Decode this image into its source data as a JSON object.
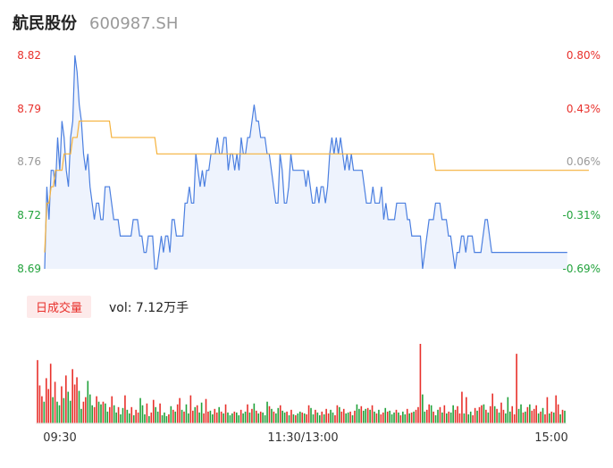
{
  "header": {
    "name": "航民股份",
    "code": "600987.SH"
  },
  "volume_panel": {
    "tab_label": "日成交量",
    "vol_label": "vol: 7.12万手"
  },
  "colors": {
    "up": "#e8302b",
    "down": "#21a23b",
    "price_line": "#4b7fe0",
    "avg_line": "#f5b13a",
    "price_fill": "#eef3fd",
    "up_axis": "#e8302b",
    "down_axis": "#21a23b",
    "flat_axis": "#999999"
  },
  "chart_data": [
    {
      "type": "line",
      "title": "",
      "y_ticks": [
        "8.82",
        "8.79",
        "8.76",
        "8.72",
        "8.69"
      ],
      "pct_ticks": [
        "0.80%",
        "0.43%",
        "0.06%",
        "-0.31%",
        "-0.69%"
      ],
      "tick_colors": [
        "up",
        "up",
        "flat",
        "down",
        "down"
      ],
      "ylim": [
        8.69,
        8.82
      ],
      "x_tick_labels": [
        "09:30",
        "11:30/13:00",
        "15:00"
      ],
      "x_tick_index": [
        0,
        120,
        240
      ],
      "series": [
        {
          "key": "price",
          "values": [
            8.69,
            8.74,
            8.72,
            8.75,
            8.75,
            8.74,
            8.77,
            8.75,
            8.78,
            8.77,
            8.75,
            8.74,
            8.77,
            8.78,
            8.82,
            8.81,
            8.79,
            8.78,
            8.76,
            8.75,
            8.76,
            8.74,
            8.73,
            8.72,
            8.73,
            8.73,
            8.72,
            8.72,
            8.74,
            8.74,
            8.74,
            8.73,
            8.72,
            8.72,
            8.72,
            8.71,
            8.71,
            8.71,
            8.71,
            8.71,
            8.71,
            8.72,
            8.72,
            8.72,
            8.71,
            8.71,
            8.7,
            8.7,
            8.71,
            8.71,
            8.71,
            8.69,
            8.69,
            8.7,
            8.71,
            8.7,
            8.71,
            8.71,
            8.7,
            8.72,
            8.72,
            8.71,
            8.71,
            8.71,
            8.71,
            8.73,
            8.73,
            8.74,
            8.73,
            8.73,
            8.76,
            8.75,
            8.74,
            8.75,
            8.74,
            8.75,
            8.75,
            8.76,
            8.76,
            8.76,
            8.77,
            8.76,
            8.76,
            8.77,
            8.77,
            8.75,
            8.76,
            8.76,
            8.75,
            8.76,
            8.75,
            8.77,
            8.76,
            8.76,
            8.77,
            8.77,
            8.78,
            8.79,
            8.78,
            8.78,
            8.77,
            8.77,
            8.77,
            8.76,
            8.76,
            8.75,
            8.74,
            8.73,
            8.73,
            8.76,
            8.75,
            8.73,
            8.73,
            8.74,
            8.76,
            8.75,
            8.75,
            8.75,
            8.75,
            8.75,
            8.75,
            8.74,
            8.75,
            8.74,
            8.73,
            8.73,
            8.74,
            8.73,
            8.74,
            8.74,
            8.73,
            8.74,
            8.76,
            8.77,
            8.76,
            8.77,
            8.76,
            8.77,
            8.76,
            8.75,
            8.76,
            8.75,
            8.76,
            8.75,
            8.75,
            8.75,
            8.75,
            8.75,
            8.74,
            8.73,
            8.73,
            8.73,
            8.74,
            8.73,
            8.73,
            8.73,
            8.74,
            8.72,
            8.73,
            8.72,
            8.72,
            8.72,
            8.72,
            8.73,
            8.73,
            8.73,
            8.73,
            8.73,
            8.72,
            8.72,
            8.71,
            8.71,
            8.71,
            8.71,
            8.71,
            8.69,
            8.7,
            8.71,
            8.72,
            8.72,
            8.72,
            8.73,
            8.73,
            8.73,
            8.72,
            8.72,
            8.72,
            8.71,
            8.71,
            8.7,
            8.69,
            8.7,
            8.7,
            8.71,
            8.71,
            8.7,
            8.71,
            8.71,
            8.71,
            8.7,
            8.7,
            8.7,
            8.7,
            8.71,
            8.72,
            8.72,
            8.71,
            8.7,
            8.7,
            8.7,
            8.7,
            8.7,
            8.7,
            8.7,
            8.7,
            8.7,
            8.7,
            8.7,
            8.7,
            8.7,
            8.7,
            8.7,
            8.7,
            8.7,
            8.7,
            8.7,
            8.7,
            8.7,
            8.7,
            8.7,
            8.7,
            8.7,
            8.7,
            8.7,
            8.7,
            8.7,
            8.7,
            8.7,
            8.7,
            8.7,
            8.7,
            8.7,
            8.7
          ]
        },
        {
          "key": "avg",
          "values": [
            8.7,
            8.73,
            8.73,
            8.74,
            8.74,
            8.75,
            8.75,
            8.75,
            8.75,
            8.76,
            8.76,
            8.76,
            8.76,
            8.77,
            8.77,
            8.77,
            8.78,
            8.78,
            8.78,
            8.78,
            8.78,
            8.78,
            8.78,
            8.78,
            8.78,
            8.78,
            8.78,
            8.78,
            8.78,
            8.78,
            8.78,
            8.77,
            8.77,
            8.77,
            8.77,
            8.77,
            8.77,
            8.77,
            8.77,
            8.77,
            8.77,
            8.77,
            8.77,
            8.77,
            8.77,
            8.77,
            8.77,
            8.77,
            8.77,
            8.77,
            8.77,
            8.77,
            8.76,
            8.76,
            8.76,
            8.76,
            8.76,
            8.76,
            8.76,
            8.76,
            8.76,
            8.76,
            8.76,
            8.76,
            8.76,
            8.76,
            8.76,
            8.76,
            8.76,
            8.76,
            8.76,
            8.76,
            8.76,
            8.76,
            8.76,
            8.76,
            8.76,
            8.76,
            8.76,
            8.76,
            8.76,
            8.76,
            8.76,
            8.76,
            8.76,
            8.76,
            8.76,
            8.76,
            8.76,
            8.76,
            8.76,
            8.76,
            8.76,
            8.76,
            8.76,
            8.76,
            8.76,
            8.76,
            8.76,
            8.76,
            8.76,
            8.76,
            8.76,
            8.76,
            8.76,
            8.76,
            8.76,
            8.76,
            8.76,
            8.76,
            8.76,
            8.76,
            8.76,
            8.76,
            8.76,
            8.76,
            8.76,
            8.76,
            8.76,
            8.76,
            8.76,
            8.76,
            8.76,
            8.76,
            8.76,
            8.76,
            8.76,
            8.76,
            8.76,
            8.76,
            8.76,
            8.76,
            8.76,
            8.76,
            8.76,
            8.76,
            8.76,
            8.76,
            8.76,
            8.76,
            8.76,
            8.76,
            8.76,
            8.76,
            8.76,
            8.76,
            8.76,
            8.76,
            8.76,
            8.76,
            8.76,
            8.76,
            8.76,
            8.76,
            8.76,
            8.76,
            8.76,
            8.76,
            8.76,
            8.76,
            8.76,
            8.76,
            8.76,
            8.76,
            8.76,
            8.76,
            8.76,
            8.76,
            8.76,
            8.76,
            8.76,
            8.76,
            8.76,
            8.76,
            8.76,
            8.76,
            8.76,
            8.76,
            8.76,
            8.76,
            8.76,
            8.75,
            8.75,
            8.75,
            8.75,
            8.75,
            8.75,
            8.75,
            8.75,
            8.75,
            8.75,
            8.75,
            8.75,
            8.75,
            8.75,
            8.75,
            8.75,
            8.75,
            8.75,
            8.75,
            8.75,
            8.75,
            8.75,
            8.75,
            8.75,
            8.75,
            8.75,
            8.75,
            8.75,
            8.75,
            8.75,
            8.75,
            8.75,
            8.75,
            8.75,
            8.75,
            8.75,
            8.75,
            8.75,
            8.75,
            8.75,
            8.75,
            8.75,
            8.75,
            8.75,
            8.75,
            8.75,
            8.75,
            8.75,
            8.75,
            8.75,
            8.75,
            8.75,
            8.75,
            8.75,
            8.75,
            8.75,
            8.75,
            8.75,
            8.75,
            8.75,
            8.75,
            8.75,
            8.75,
            8.75,
            8.75,
            8.75,
            8.75,
            8.75,
            8.75,
            8.75,
            8.75,
            8.75
          ]
        }
      ]
    },
    {
      "type": "bar",
      "title": "",
      "series": [
        {
          "key": "volume",
          "values": [
            700,
            420,
            300,
            240,
            500,
            380,
            660,
            290,
            460,
            240,
            200,
            410,
            280,
            530,
            350,
            250,
            600,
            430,
            510,
            360,
            160,
            240,
            290,
            470,
            320,
            200,
            180,
            300,
            240,
            210,
            240,
            220,
            130,
            180,
            300,
            200,
            120,
            180,
            100,
            170,
            310,
            150,
            110,
            180,
            90,
            150,
            120,
            280,
            200,
            100,
            220,
            80,
            120,
            260,
            180,
            130,
            220,
            90,
            120,
            80,
            100,
            190,
            150,
            130,
            210,
            280,
            150,
            130,
            210,
            110,
            310,
            140,
            180,
            200,
            120,
            230,
            110,
            270,
            130,
            140,
            100,
            160,
            120,
            180,
            130,
            110,
            210,
            120,
            90,
            110,
            130,
            120,
            90,
            150,
            110,
            130,
            210,
            120,
            160,
            220,
            140,
            110,
            130,
            120,
            90,
            240,
            190,
            160,
            130,
            110,
            170,
            200,
            140,
            120,
            130,
            90,
            150,
            100,
            90,
            110,
            130,
            120,
            110,
            100,
            200,
            170,
            100,
            150,
            120,
            90,
            130,
            100,
            160,
            110,
            150,
            120,
            90,
            200,
            180,
            130,
            160,
            110,
            120,
            130,
            90,
            140,
            210,
            160,
            190,
            140,
            160,
            170,
            150,
            200,
            130,
            110,
            150,
            100,
            120,
            170,
            130,
            140,
            100,
            120,
            150,
            120,
            90,
            130,
            100,
            160,
            110,
            120,
            130,
            150,
            180,
            880,
            320,
            130,
            150,
            210,
            200,
            130,
            90,
            150,
            180,
            120,
            200,
            110,
            130,
            120,
            200,
            150,
            190,
            110,
            350,
            110,
            290,
            100,
            130,
            90,
            170,
            140,
            180,
            200,
            210,
            150,
            120,
            190,
            330,
            190,
            160,
            120,
            230,
            150,
            110,
            290,
            130,
            190,
            100,
            770,
            160,
            210,
            120,
            130,
            180,
            210,
            140,
            160,
            200,
            110,
            130,
            170,
            100,
            290,
            110,
            130,
            120,
            310,
            210,
            100,
            150,
            140
          ],
          "up": [
            1,
            1,
            1,
            0,
            1,
            1,
            1,
            0,
            1,
            0,
            0,
            1,
            0,
            1,
            0,
            0,
            1,
            1,
            1,
            0,
            0,
            1,
            1,
            0,
            0,
            0,
            1,
            1,
            0,
            0,
            1,
            0,
            0,
            1,
            1,
            0,
            0,
            1,
            0,
            0,
            1,
            0,
            0,
            1,
            0,
            1,
            1,
            0,
            0,
            0,
            1,
            0,
            1,
            1,
            0,
            0,
            1,
            0,
            0,
            0,
            1,
            0,
            1,
            0,
            1,
            1,
            0,
            1,
            0,
            0,
            1,
            1,
            0,
            1,
            0,
            0,
            1,
            1,
            1,
            0,
            0,
            1,
            1,
            0,
            1,
            0,
            1,
            0,
            0,
            0,
            1,
            0,
            0,
            1,
            0,
            0,
            1,
            0,
            1,
            0,
            1,
            0,
            1,
            0,
            0,
            0,
            1,
            0,
            1,
            0,
            0,
            1,
            0,
            0,
            1,
            0,
            1,
            0,
            1,
            0,
            0,
            1,
            0,
            1,
            1,
            0,
            0,
            1,
            0,
            0,
            1,
            0,
            1,
            1,
            0,
            0,
            1,
            1,
            0,
            1,
            1,
            0,
            0,
            1,
            0,
            1,
            0,
            0,
            1,
            0,
            0,
            1,
            0,
            1,
            0,
            1,
            0,
            1,
            1,
            0,
            1,
            0,
            0,
            0,
            1,
            0,
            1,
            0,
            0,
            1,
            0,
            1,
            0,
            1,
            1,
            1,
            0,
            0,
            1,
            1,
            0,
            1,
            0,
            0,
            1,
            0,
            1,
            0,
            1,
            0,
            0,
            1,
            1,
            1,
            1,
            0,
            1,
            0,
            0,
            1,
            1,
            0,
            1,
            1,
            0,
            1,
            0,
            1,
            1,
            0,
            1,
            0,
            1,
            1,
            0,
            0,
            0,
            1,
            1,
            1,
            0,
            0,
            1,
            0,
            1,
            0,
            1,
            1,
            1,
            0,
            1,
            0,
            1,
            1,
            0,
            1,
            0,
            1,
            1,
            0,
            1,
            0,
            1
          ]
        }
      ]
    }
  ]
}
